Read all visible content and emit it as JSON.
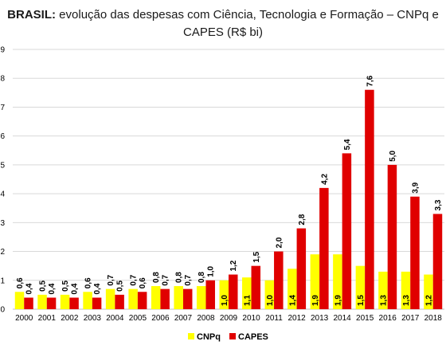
{
  "chart_data": {
    "type": "bar",
    "title_bold": "BRASIL:",
    "title_rest": "evolução das despesas com Ciência, Tecnologia e Formação – CNPq e CAPES (R$ bi)",
    "categories": [
      "2000",
      "2001",
      "2002",
      "2003",
      "2004",
      "2005",
      "2006",
      "2007",
      "2008",
      "2009",
      "2010",
      "2011",
      "2012",
      "2013",
      "2014",
      "2015",
      "2016",
      "2017",
      "2018"
    ],
    "series": [
      {
        "name": "CNPq",
        "color": "#ffff00",
        "values": [
          0.6,
          0.5,
          0.5,
          0.6,
          0.7,
          0.7,
          0.8,
          0.8,
          0.8,
          1.0,
          1.1,
          1.0,
          1.4,
          1.9,
          1.9,
          1.5,
          1.3,
          1.3,
          1.2
        ],
        "labels": [
          "0,6",
          "0,5",
          "0,5",
          "0,6",
          "0,7",
          "0,7",
          "0,8",
          "0,8",
          "0,8",
          "1,0",
          "1,1",
          "1,0",
          "1,4",
          "1,9",
          "1,9",
          "1,5",
          "1,3",
          "1,3",
          "1,2"
        ]
      },
      {
        "name": "CAPES",
        "color": "#e00000",
        "values": [
          0.4,
          0.4,
          0.4,
          0.4,
          0.5,
          0.6,
          0.7,
          0.7,
          1.0,
          1.2,
          1.5,
          2.0,
          2.8,
          4.2,
          5.4,
          7.6,
          5.0,
          3.9,
          3.3
        ],
        "labels": [
          "0,4",
          "0,4",
          "0,4",
          "0,4",
          "0,5",
          "0,6",
          "0,7",
          "0,7",
          "1,0",
          "1,2",
          "1,5",
          "2,0",
          "2,8",
          "4,2",
          "5,4",
          "7,6",
          "5,0",
          "3,9",
          "3,3"
        ]
      }
    ],
    "ylim": [
      0,
      9
    ],
    "yticks": [
      "0",
      "1",
      "2",
      "3",
      "4",
      "5",
      "6",
      "7",
      "8",
      "9"
    ],
    "grid": true,
    "legend_position": "bottom-center"
  }
}
